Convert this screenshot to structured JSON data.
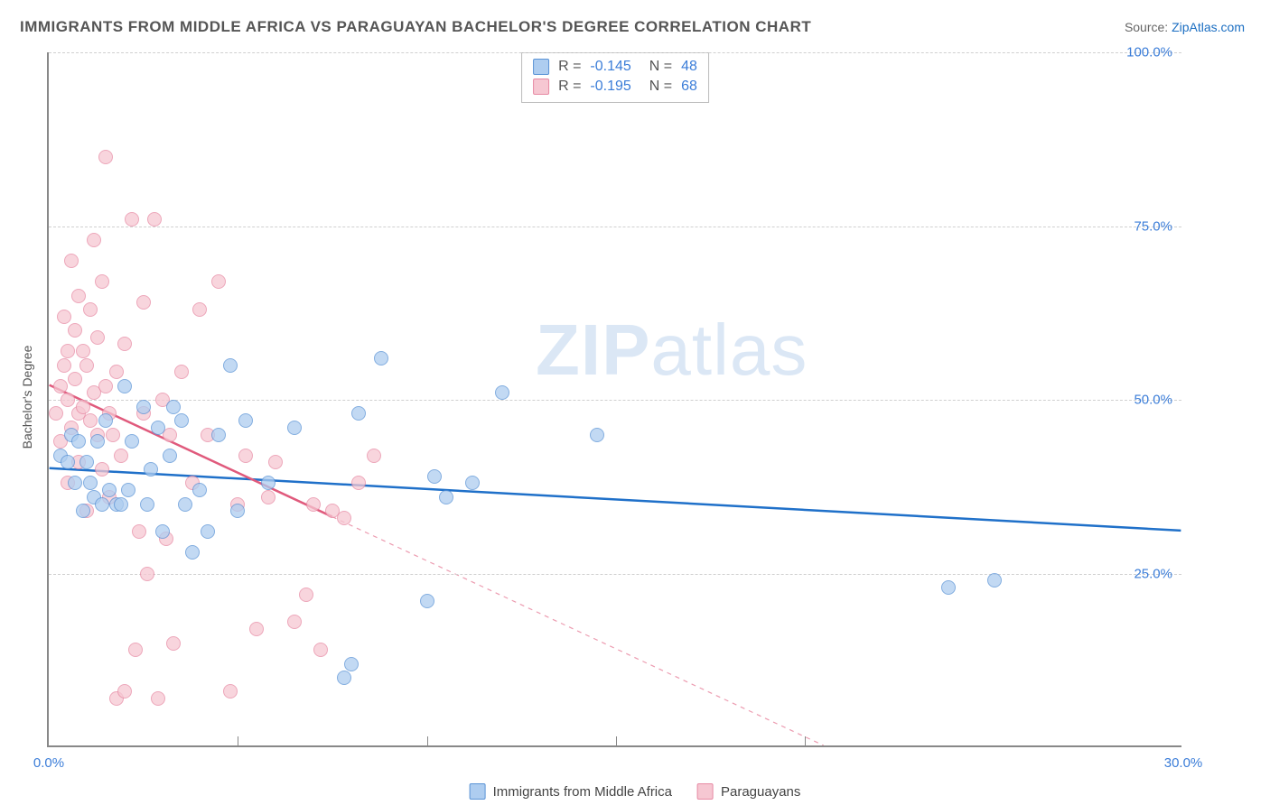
{
  "title": "IMMIGRANTS FROM MIDDLE AFRICA VS PARAGUAYAN BACHELOR'S DEGREE CORRELATION CHART",
  "source_label": "Source:",
  "source_link_text": "ZipAtlas.com",
  "ylabel": "Bachelor's Degree",
  "watermark_bold": "ZIP",
  "watermark_light": "atlas",
  "chart": {
    "type": "scatter",
    "xlim": [
      0,
      30
    ],
    "ylim": [
      0,
      100
    ],
    "xticks": [
      0,
      30
    ],
    "xtick_labels": [
      "0.0%",
      "30.0%"
    ],
    "xtick_majors": [
      5,
      10,
      15,
      20
    ],
    "yticks": [
      25,
      50,
      75,
      100
    ],
    "ytick_labels": [
      "25.0%",
      "50.0%",
      "75.0%",
      "100.0%"
    ],
    "grid_color": "#d8d8d8",
    "axis_color": "#888888",
    "background_color": "#ffffff",
    "point_radius": 8,
    "series": [
      {
        "name": "Immigrants from Middle Africa",
        "fill": "#aecdf0",
        "stroke": "#5a93d6",
        "line_color": "#1f70c9",
        "R": "-0.145",
        "N": "48",
        "trend": {
          "x1": 0,
          "y1": 40,
          "x2": 30,
          "y2": 31,
          "extrapolated_from": 30
        },
        "points": [
          [
            0.3,
            42
          ],
          [
            0.5,
            41
          ],
          [
            0.6,
            45
          ],
          [
            0.7,
            38
          ],
          [
            0.8,
            44
          ],
          [
            0.9,
            34
          ],
          [
            1.0,
            41
          ],
          [
            1.1,
            38
          ],
          [
            1.2,
            36
          ],
          [
            1.3,
            44
          ],
          [
            1.4,
            35
          ],
          [
            1.5,
            47
          ],
          [
            1.6,
            37
          ],
          [
            1.8,
            35
          ],
          [
            1.9,
            35
          ],
          [
            2.0,
            52
          ],
          [
            2.1,
            37
          ],
          [
            2.2,
            44
          ],
          [
            2.5,
            49
          ],
          [
            2.6,
            35
          ],
          [
            2.7,
            40
          ],
          [
            2.9,
            46
          ],
          [
            3.0,
            31
          ],
          [
            3.2,
            42
          ],
          [
            3.3,
            49
          ],
          [
            3.5,
            47
          ],
          [
            3.6,
            35
          ],
          [
            3.8,
            28
          ],
          [
            4.0,
            37
          ],
          [
            4.2,
            31
          ],
          [
            4.5,
            45
          ],
          [
            4.8,
            55
          ],
          [
            5.0,
            34
          ],
          [
            5.2,
            47
          ],
          [
            5.8,
            38
          ],
          [
            6.5,
            46
          ],
          [
            7.8,
            10
          ],
          [
            8.0,
            12
          ],
          [
            8.2,
            48
          ],
          [
            8.8,
            56
          ],
          [
            10.0,
            21
          ],
          [
            10.2,
            39
          ],
          [
            10.5,
            36
          ],
          [
            11.2,
            38
          ],
          [
            12.0,
            51
          ],
          [
            14.5,
            45
          ],
          [
            23.8,
            23
          ],
          [
            25.0,
            24
          ]
        ]
      },
      {
        "name": "Paraguayans",
        "fill": "#f6c7d2",
        "stroke": "#e78aa4",
        "line_color": "#e05a7c",
        "R": "-0.195",
        "N": "68",
        "trend": {
          "x1": 0,
          "y1": 52,
          "x2": 7.5,
          "y2": 33,
          "extrapolated_from": 7.5
        },
        "points": [
          [
            0.2,
            48
          ],
          [
            0.3,
            44
          ],
          [
            0.3,
            52
          ],
          [
            0.4,
            62
          ],
          [
            0.4,
            55
          ],
          [
            0.5,
            50
          ],
          [
            0.5,
            57
          ],
          [
            0.5,
            38
          ],
          [
            0.6,
            70
          ],
          [
            0.6,
            46
          ],
          [
            0.7,
            60
          ],
          [
            0.7,
            53
          ],
          [
            0.8,
            48
          ],
          [
            0.8,
            65
          ],
          [
            0.8,
            41
          ],
          [
            0.9,
            57
          ],
          [
            0.9,
            49
          ],
          [
            1.0,
            55
          ],
          [
            1.0,
            34
          ],
          [
            1.1,
            63
          ],
          [
            1.1,
            47
          ],
          [
            1.2,
            51
          ],
          [
            1.2,
            73
          ],
          [
            1.3,
            45
          ],
          [
            1.3,
            59
          ],
          [
            1.4,
            67
          ],
          [
            1.4,
            40
          ],
          [
            1.5,
            85
          ],
          [
            1.5,
            52
          ],
          [
            1.6,
            36
          ],
          [
            1.6,
            48
          ],
          [
            1.7,
            45
          ],
          [
            1.8,
            54
          ],
          [
            1.8,
            7
          ],
          [
            1.9,
            42
          ],
          [
            2.0,
            8
          ],
          [
            2.0,
            58
          ],
          [
            2.2,
            76
          ],
          [
            2.3,
            14
          ],
          [
            2.4,
            31
          ],
          [
            2.5,
            64
          ],
          [
            2.5,
            48
          ],
          [
            2.6,
            25
          ],
          [
            2.8,
            76
          ],
          [
            2.9,
            7
          ],
          [
            3.0,
            50
          ],
          [
            3.1,
            30
          ],
          [
            3.2,
            45
          ],
          [
            3.3,
            15
          ],
          [
            3.5,
            54
          ],
          [
            3.8,
            38
          ],
          [
            4.0,
            63
          ],
          [
            4.2,
            45
          ],
          [
            4.5,
            67
          ],
          [
            4.8,
            8
          ],
          [
            5.0,
            35
          ],
          [
            5.2,
            42
          ],
          [
            5.5,
            17
          ],
          [
            5.8,
            36
          ],
          [
            6.0,
            41
          ],
          [
            6.5,
            18
          ],
          [
            6.8,
            22
          ],
          [
            7.0,
            35
          ],
          [
            7.2,
            14
          ],
          [
            7.5,
            34
          ],
          [
            7.8,
            33
          ],
          [
            8.2,
            38
          ],
          [
            8.6,
            42
          ]
        ]
      }
    ],
    "legend_bottom": [
      {
        "label": "Immigrants from Middle Africa",
        "fill": "#aecdf0",
        "stroke": "#5a93d6"
      },
      {
        "label": "Paraguayans",
        "fill": "#f6c7d2",
        "stroke": "#e78aa4"
      }
    ]
  }
}
